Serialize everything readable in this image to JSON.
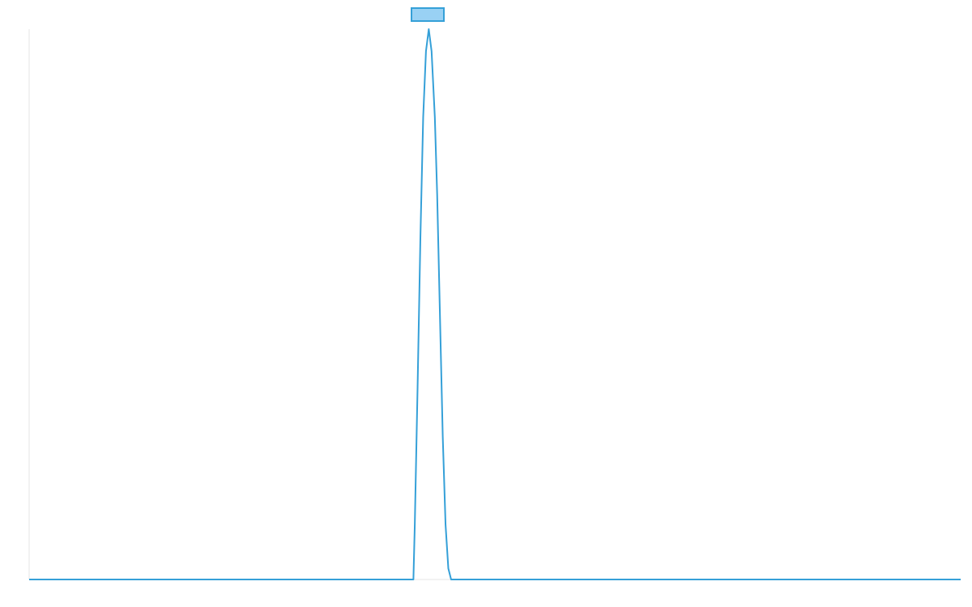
{
  "chart_data": {
    "type": "line",
    "title": "",
    "xlabel": "",
    "ylabel": "",
    "legend": {
      "placement": "top-center",
      "swatch_fill": "#99d1f4",
      "swatch_stroke": "#35a0d8"
    },
    "grid": false,
    "xlim": [
      0,
      1
    ],
    "ylim": [
      0,
      1
    ],
    "series": [
      {
        "color": "#35a0d8",
        "x": [
          0.0,
          0.4125,
          0.414,
          0.417,
          0.42,
          0.423,
          0.426,
          0.429,
          0.432,
          0.4355,
          0.438,
          0.441,
          0.444,
          0.447,
          0.45,
          0.453,
          0.4535,
          1.0
        ],
        "y": [
          0.0,
          0.0,
          0.1,
          0.35,
          0.62,
          0.84,
          0.96,
          1.0,
          0.96,
          0.84,
          0.7,
          0.48,
          0.26,
          0.1,
          0.02,
          0.0,
          0.0,
          0.0
        ]
      }
    ]
  }
}
